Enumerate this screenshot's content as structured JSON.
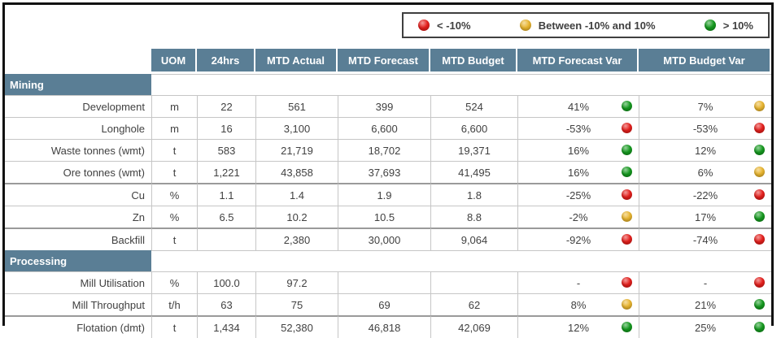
{
  "theme": {
    "header_bg": "#5a7e95",
    "frame_border": "#111111"
  },
  "status_colors": {
    "red": "#e41f1c",
    "yellow": "#e9b52f",
    "green": "#15991f"
  },
  "legend": {
    "items": [
      {
        "status": "red",
        "label": "< -10%"
      },
      {
        "status": "yellow",
        "label": "Between -10% and 10%"
      },
      {
        "status": "green",
        "label": "> 10%"
      }
    ]
  },
  "table": {
    "columns": [
      {
        "key": "uom",
        "label": "UOM"
      },
      {
        "key": "24hrs",
        "label": "24hrs"
      },
      {
        "key": "mtd-actual",
        "label": "MTD Actual"
      },
      {
        "key": "mtd-forecast",
        "label": "MTD Forecast"
      },
      {
        "key": "mtd-budget",
        "label": "MTD Budget"
      },
      {
        "key": "mtd-forecast-var",
        "label": "MTD Forecast Var"
      },
      {
        "key": "mtd-budget-var",
        "label": "MTD Budget Var"
      }
    ],
    "sections": [
      {
        "title": "Mining",
        "rows": [
          {
            "label": "Development",
            "values": [
              "m",
              "22",
              "561",
              "399",
              "524"
            ],
            "forecast_var": {
              "text": "41%",
              "status": "green"
            },
            "budget_var": {
              "text": "7%",
              "status": "yellow"
            },
            "group_start": false
          },
          {
            "label": "Longhole",
            "values": [
              "m",
              "16",
              "3,100",
              "6,600",
              "6,600"
            ],
            "forecast_var": {
              "text": "-53%",
              "status": "red"
            },
            "budget_var": {
              "text": "-53%",
              "status": "red"
            },
            "group_start": false
          },
          {
            "label": "Waste tonnes (wmt)",
            "values": [
              "t",
              "583",
              "21,719",
              "18,702",
              "19,371"
            ],
            "forecast_var": {
              "text": "16%",
              "status": "green"
            },
            "budget_var": {
              "text": "12%",
              "status": "green"
            },
            "group_start": false
          },
          {
            "label": "Ore tonnes (wmt)",
            "values": [
              "t",
              "1,221",
              "43,858",
              "37,693",
              "41,495"
            ],
            "forecast_var": {
              "text": "16%",
              "status": "green"
            },
            "budget_var": {
              "text": "6%",
              "status": "yellow"
            },
            "group_start": false
          },
          {
            "label": "Cu",
            "values": [
              "%",
              "1.1",
              "1.4",
              "1.9",
              "1.8"
            ],
            "forecast_var": {
              "text": "-25%",
              "status": "red"
            },
            "budget_var": {
              "text": "-22%",
              "status": "red"
            },
            "group_start": true
          },
          {
            "label": "Zn",
            "values": [
              "%",
              "6.5",
              "10.2",
              "10.5",
              "8.8"
            ],
            "forecast_var": {
              "text": "-2%",
              "status": "yellow"
            },
            "budget_var": {
              "text": "17%",
              "status": "green"
            },
            "group_start": false
          },
          {
            "label": "Backfill",
            "values": [
              "t",
              "",
              "2,380",
              "30,000",
              "9,064"
            ],
            "forecast_var": {
              "text": "-92%",
              "status": "red"
            },
            "budget_var": {
              "text": "-74%",
              "status": "red"
            },
            "group_start": true
          }
        ]
      },
      {
        "title": "Processing",
        "rows": [
          {
            "label": "Mill Utilisation",
            "values": [
              "%",
              "100.0",
              "97.2",
              "",
              ""
            ],
            "forecast_var": {
              "text": "-",
              "status": "red"
            },
            "budget_var": {
              "text": "-",
              "status": "red"
            },
            "group_start": false
          },
          {
            "label": "Mill Throughput",
            "values": [
              "t/h",
              "63",
              "75",
              "69",
              "62"
            ],
            "forecast_var": {
              "text": "8%",
              "status": "yellow"
            },
            "budget_var": {
              "text": "21%",
              "status": "green"
            },
            "group_start": false
          },
          {
            "label": "Flotation (dmt)",
            "values": [
              "t",
              "1,434",
              "52,380",
              "46,818",
              "42,069"
            ],
            "forecast_var": {
              "text": "12%",
              "status": "green"
            },
            "budget_var": {
              "text": "25%",
              "status": "green"
            },
            "group_start": true
          }
        ]
      }
    ]
  }
}
